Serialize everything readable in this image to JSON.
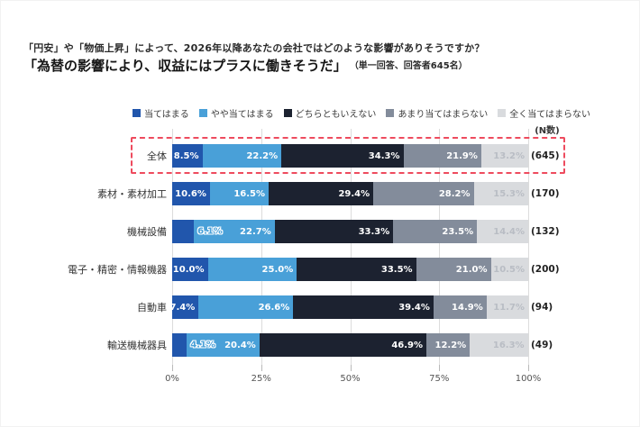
{
  "header": {
    "title_line1": "「円安」や「物価上昇」によって、2026年以降あなたの会社ではどのような影響がありそうですか？",
    "title_line2": "「為替の影響により、収益にはプラスに働きそうだ」",
    "title_note": "（単一回答、回答者645名）"
  },
  "chart_data": {
    "type": "bar",
    "stacked": true,
    "orientation": "horizontal",
    "title": "「為替の影響により、収益にはプラスに働きそうだ」",
    "n_header": "(N数)",
    "legend": [
      "当てはまる",
      "やや当てはまる",
      "どちらともいえない",
      "あまり当てはまらない",
      "全く当てはまらない"
    ],
    "colors": [
      "#2156ac",
      "#49a0d8",
      "#1c2230",
      "#838c9b",
      "#d9dbde"
    ],
    "last_segment_text_color": "#b9bdc4",
    "highlight_color": "#ee4b5e",
    "categories": [
      "全体",
      "素材・素材加工",
      "機械設備",
      "電子・精密・情報機器",
      "自動車",
      "輸送機械器具"
    ],
    "n_values": [
      "(645)",
      "(170)",
      "(132)",
      "(200)",
      "(94)",
      "(49)"
    ],
    "series": [
      {
        "name": "当てはまる",
        "values": [
          8.5,
          10.6,
          6.1,
          10.0,
          7.4,
          4.1
        ]
      },
      {
        "name": "やや当てはまる",
        "values": [
          22.2,
          16.5,
          22.7,
          25.0,
          26.6,
          20.4
        ]
      },
      {
        "name": "どちらともいえない",
        "values": [
          34.3,
          29.4,
          33.3,
          33.5,
          39.4,
          46.9
        ]
      },
      {
        "name": "あまり当てはまらない",
        "values": [
          21.9,
          28.2,
          23.5,
          21.0,
          14.9,
          12.2
        ]
      },
      {
        "name": "全く当てはまらない",
        "values": [
          13.2,
          15.3,
          14.4,
          10.5,
          11.7,
          16.3
        ]
      }
    ],
    "x_ticks": [
      "0%",
      "25%",
      "50%",
      "75%",
      "100%"
    ],
    "xlim": [
      0,
      100
    ],
    "grid": true,
    "legend_position": "top",
    "highlight_row": 0,
    "outline_label_threshold": 7
  }
}
